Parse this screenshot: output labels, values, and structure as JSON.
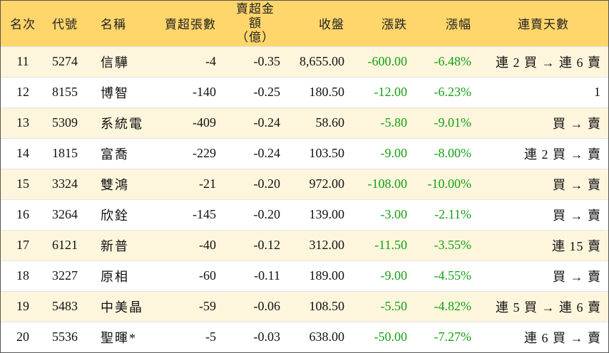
{
  "header": {
    "rank": "名次",
    "code": "代號",
    "name": "名稱",
    "net_sell_lots": "賣超張數",
    "net_sell_amount": "賣超金額",
    "net_sell_amount_unit": "（億）",
    "close": "收盤",
    "change": "漲跌",
    "change_pct": "漲幅",
    "streak": "連賣天數"
  },
  "rows": [
    {
      "rank": "11",
      "code": "5274",
      "name": "信驊",
      "lots": "-4",
      "amount": "-0.35",
      "close": "8,655.00",
      "change": "-600.00",
      "pct": "-6.48%",
      "streak": "連 2 買 → 連 6 賣"
    },
    {
      "rank": "12",
      "code": "8155",
      "name": "博智",
      "lots": "-140",
      "amount": "-0.25",
      "close": "180.50",
      "change": "-12.00",
      "pct": "-6.23%",
      "streak": "1"
    },
    {
      "rank": "13",
      "code": "5309",
      "name": "系統電",
      "lots": "-409",
      "amount": "-0.24",
      "close": "58.60",
      "change": "-5.80",
      "pct": "-9.01%",
      "streak": "買 → 賣"
    },
    {
      "rank": "14",
      "code": "1815",
      "name": "富喬",
      "lots": "-229",
      "amount": "-0.24",
      "close": "103.50",
      "change": "-9.00",
      "pct": "-8.00%",
      "streak": "連 2 買 → 賣"
    },
    {
      "rank": "15",
      "code": "3324",
      "name": "雙鴻",
      "lots": "-21",
      "amount": "-0.20",
      "close": "972.00",
      "change": "-108.00",
      "pct": "-10.00%",
      "streak": "買 → 賣"
    },
    {
      "rank": "16",
      "code": "3264",
      "name": "欣銓",
      "lots": "-145",
      "amount": "-0.20",
      "close": "139.00",
      "change": "-3.00",
      "pct": "-2.11%",
      "streak": "買 → 賣"
    },
    {
      "rank": "17",
      "code": "6121",
      "name": "新普",
      "lots": "-40",
      "amount": "-0.12",
      "close": "312.00",
      "change": "-11.50",
      "pct": "-3.55%",
      "streak": "連 15 賣"
    },
    {
      "rank": "18",
      "code": "3227",
      "name": "原相",
      "lots": "-60",
      "amount": "-0.11",
      "close": "189.00",
      "change": "-9.00",
      "pct": "-4.55%",
      "streak": "買 → 賣"
    },
    {
      "rank": "19",
      "code": "5483",
      "name": "中美晶",
      "lots": "-59",
      "amount": "-0.06",
      "close": "108.50",
      "change": "-5.50",
      "pct": "-4.82%",
      "streak": "連 5 買 → 連 6 賣"
    },
    {
      "rank": "20",
      "code": "5536",
      "name": "聖暉*",
      "lots": "-5",
      "amount": "-0.03",
      "close": "638.00",
      "change": "-50.00",
      "pct": "-7.27%",
      "streak": "連 6 買 → 賣"
    }
  ],
  "colors": {
    "header_bg": "#ffd66b",
    "odd_row_bg": "#fdf5dc",
    "even_row_bg": "#ffffff",
    "down": "#15a015"
  }
}
